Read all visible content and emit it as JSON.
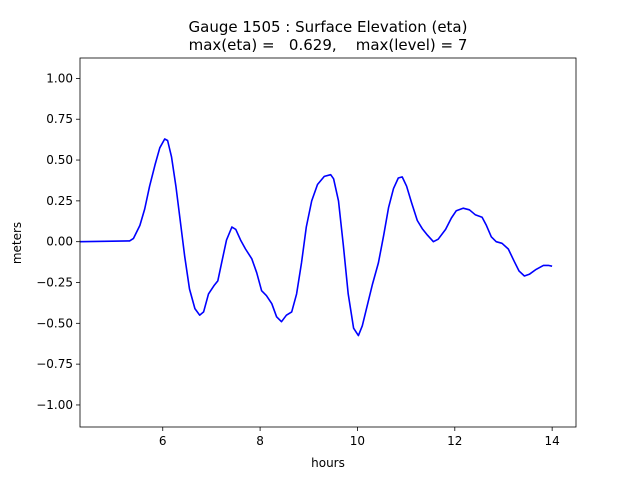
{
  "chart_data": {
    "type": "line",
    "title": "Gauge 1505 : Surface Elevation (eta)",
    "subtitle": "max(eta) =   0.629,    max(level) = 7",
    "xlabel": "hours",
    "ylabel": "meters",
    "xlim": [
      4.3,
      14.49
    ],
    "ylim": [
      -1.135,
      1.125
    ],
    "xticks": [
      6,
      8,
      10,
      12,
      14
    ],
    "xtick_labels": [
      "6",
      "8",
      "10",
      "12",
      "14"
    ],
    "yticks": [
      1.0,
      0.75,
      0.5,
      0.25,
      0.0,
      -0.25,
      -0.5,
      -0.75,
      -1.0
    ],
    "ytick_labels": [
      "1.00",
      "0.75",
      "0.50",
      "0.25",
      "0.00",
      "−0.25",
      "−0.50",
      "−0.75",
      "−1.00"
    ],
    "grid": false,
    "series": [
      {
        "name": "eta",
        "color": "#0000ff",
        "x": [
          4.3,
          5.32,
          5.4,
          5.53,
          5.63,
          5.73,
          5.84,
          5.94,
          6.04,
          6.1,
          6.18,
          6.27,
          6.35,
          6.45,
          6.55,
          6.66,
          6.76,
          6.84,
          6.94,
          7.05,
          7.13,
          7.21,
          7.31,
          7.42,
          7.5,
          7.6,
          7.7,
          7.83,
          7.93,
          8.03,
          8.13,
          8.24,
          8.34,
          8.44,
          8.54,
          8.65,
          8.75,
          8.85,
          8.95,
          9.06,
          9.18,
          9.32,
          9.45,
          9.51,
          9.61,
          9.71,
          9.81,
          9.92,
          10.02,
          10.1,
          10.21,
          10.31,
          10.43,
          10.54,
          10.64,
          10.74,
          10.84,
          10.92,
          11.01,
          11.11,
          11.23,
          11.33,
          11.44,
          11.56,
          11.66,
          11.81,
          11.93,
          12.03,
          12.17,
          12.3,
          12.42,
          12.56,
          12.65,
          12.75,
          12.85,
          12.97,
          13.1,
          13.22,
          13.32,
          13.43,
          13.53,
          13.67,
          13.82,
          13.92,
          14.0
        ],
        "y": [
          0.0,
          0.005,
          0.02,
          0.1,
          0.2,
          0.34,
          0.47,
          0.575,
          0.629,
          0.62,
          0.52,
          0.34,
          0.15,
          -0.09,
          -0.29,
          -0.41,
          -0.45,
          -0.43,
          -0.32,
          -0.27,
          -0.24,
          -0.13,
          0.01,
          0.09,
          0.075,
          0.01,
          -0.045,
          -0.105,
          -0.19,
          -0.3,
          -0.33,
          -0.38,
          -0.46,
          -0.49,
          -0.45,
          -0.43,
          -0.32,
          -0.13,
          0.09,
          0.25,
          0.35,
          0.4,
          0.41,
          0.385,
          0.25,
          -0.02,
          -0.32,
          -0.53,
          -0.575,
          -0.515,
          -0.38,
          -0.26,
          -0.13,
          0.04,
          0.21,
          0.325,
          0.39,
          0.397,
          0.34,
          0.24,
          0.13,
          0.08,
          0.04,
          0.0,
          0.015,
          0.075,
          0.145,
          0.19,
          0.205,
          0.195,
          0.165,
          0.15,
          0.1,
          0.03,
          0.0,
          -0.01,
          -0.045,
          -0.12,
          -0.18,
          -0.21,
          -0.2,
          -0.17,
          -0.145,
          -0.145,
          -0.15
        ]
      }
    ]
  }
}
